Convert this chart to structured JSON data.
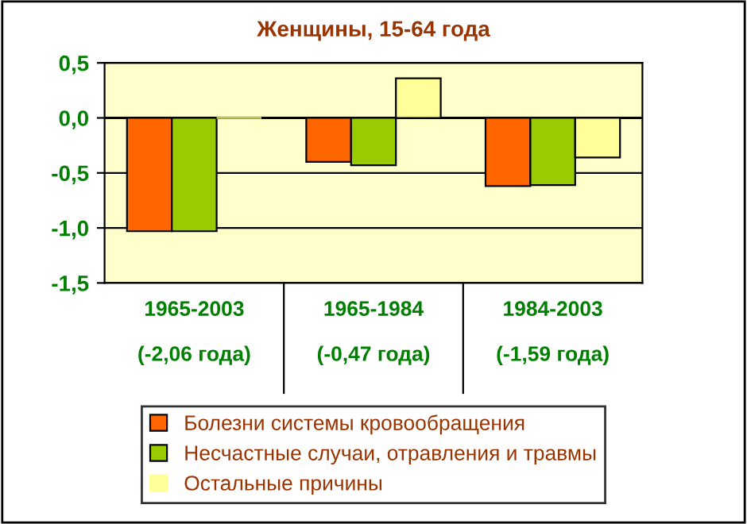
{
  "chart_data": {
    "type": "bar",
    "title": "Женщины, 15-64 года",
    "categories": [
      "1965-2003\n\n(-2,06 года)",
      "1965-1984\n\n(-0,47 года)",
      "1984-2003\n\n(-1,59 года)"
    ],
    "series": [
      {
        "name": "Болезни системы кровообращения",
        "color": "#ff6600",
        "values": [
          -1.03,
          -0.4,
          -0.62
        ]
      },
      {
        "name": "Несчастные случаи, отравления и травмы",
        "color": "#99cc00",
        "values": [
          -1.03,
          -0.43,
          -0.61
        ]
      },
      {
        "name": "Остальные причины",
        "color": "#ffff99",
        "values": [
          0.0,
          0.36,
          -0.36
        ]
      }
    ],
    "ylim": [
      -1.5,
      0.5
    ],
    "yticks": [
      {
        "value": -1.5,
        "label": "-1,5"
      },
      {
        "value": -1.0,
        "label": "-1,0"
      },
      {
        "value": -0.5,
        "label": "-0,5"
      },
      {
        "value": 0.0,
        "label": "0,0"
      },
      {
        "value": 0.5,
        "label": "0,5"
      }
    ],
    "grid": "y",
    "legend": "bottom"
  }
}
